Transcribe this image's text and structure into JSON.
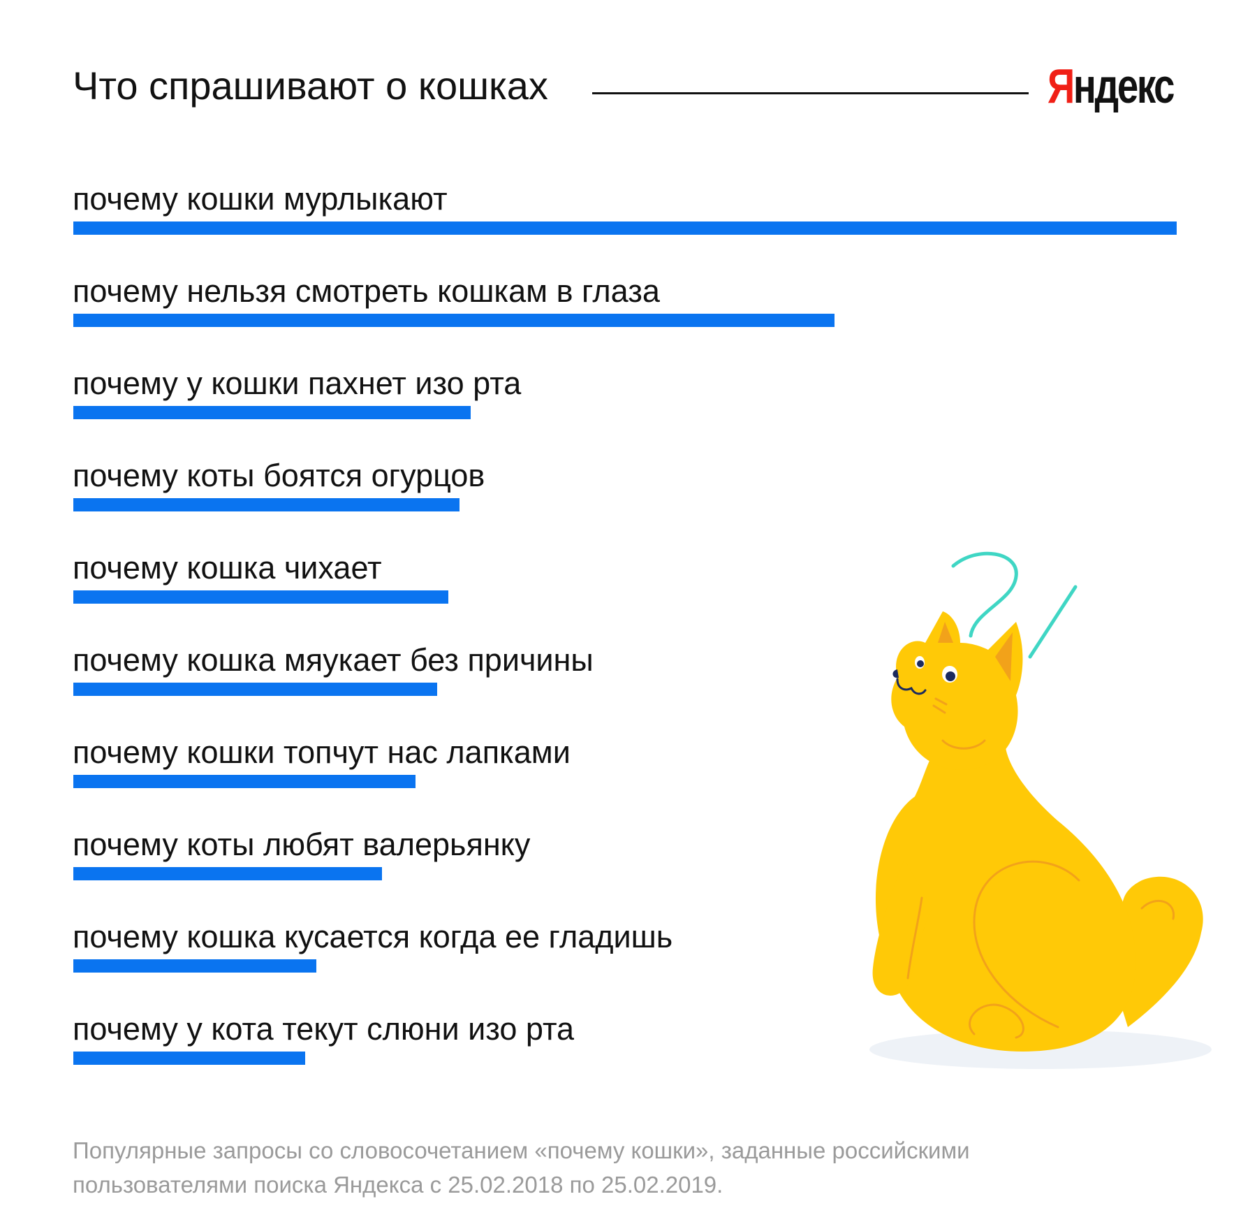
{
  "header": {
    "title": "Что спрашивают о кошках",
    "logo_first": "Я",
    "logo_rest": "ндекс"
  },
  "chart_data": {
    "type": "bar",
    "orientation": "horizontal",
    "title": "Что спрашивают о кошках",
    "categories": [
      "почему кошки мурлыкают",
      "почему нельзя смотреть кошкам в глаза",
      "почему у кошки пахнет изо рта",
      "почему коты боятся огурцов",
      "почему кошка чихает",
      "почему кошка мяукает без причины",
      "почему кошки топчут нас лапками",
      "почему коты любят валерьянку",
      "почему кошка кусается когда ее гладишь",
      "почему у кота текут слюни изо рта"
    ],
    "values": [
      100,
      69,
      36,
      35,
      34,
      33,
      31,
      28,
      22,
      21
    ],
    "bar_color": "#0a74f0",
    "xlim": [
      0,
      100
    ],
    "grid": false,
    "legend": "none"
  },
  "footnote": "Популярные запросы со словосочетанием «почему кошки», заданные российскими пользователями поиска Яндекса с 25.02.2018 по 25.02.2019.",
  "colors": {
    "cat_body": "#ffc907",
    "accent_lines": "#3fd6c4",
    "logo_red": "#f01f16"
  }
}
